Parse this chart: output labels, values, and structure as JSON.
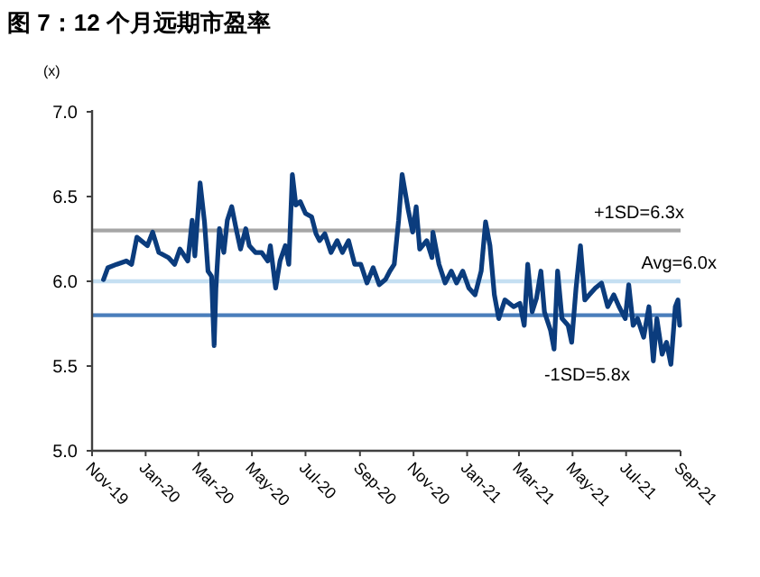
{
  "chart_data": {
    "type": "line",
    "title": "图 7：12 个月远期市盈率",
    "ylabel": "(x)",
    "xlim": [
      "2019-11-01",
      "2021-09-01"
    ],
    "xticks": [
      {
        "value": "2019-11-01",
        "label": "Nov-19"
      },
      {
        "value": "2020-01-01",
        "label": "Jan-20"
      },
      {
        "value": "2020-03-01",
        "label": "Mar-20"
      },
      {
        "value": "2020-05-01",
        "label": "May-20"
      },
      {
        "value": "2020-07-01",
        "label": "Jul-20"
      },
      {
        "value": "2020-09-01",
        "label": "Sep-20"
      },
      {
        "value": "2020-11-01",
        "label": "Nov-20"
      },
      {
        "value": "2021-01-01",
        "label": "Jan-21"
      },
      {
        "value": "2021-03-01",
        "label": "Mar-21"
      },
      {
        "value": "2021-05-01",
        "label": "May-21"
      },
      {
        "value": "2021-07-01",
        "label": "Jul-21"
      },
      {
        "value": "2021-09-01",
        "label": "Sep-21"
      }
    ],
    "ylim": [
      5,
      7
    ],
    "yticks": [
      {
        "value": 5,
        "label": "5.0"
      },
      {
        "value": 5.5,
        "label": "5.5"
      },
      {
        "value": 6,
        "label": "6.0"
      },
      {
        "value": 6.5,
        "label": "6.5"
      },
      {
        "value": 7,
        "label": "7.0"
      }
    ],
    "grid": false,
    "marker": "none",
    "line_style": "solid",
    "ref_lines": [
      {
        "axis": "y",
        "value": 6.3,
        "label": "+1SD=6.3x",
        "color": "#a6a6a6"
      },
      {
        "axis": "y",
        "value": 6.0,
        "label": "Avg=6.0x",
        "color": "#c5dff2"
      },
      {
        "axis": "y",
        "value": 5.8,
        "label": "-1SD=5.8x",
        "color": "#4a7ebb"
      }
    ],
    "series": [
      {
        "color": "#0b3c7d",
        "x": [
          "2019-11-14",
          "2019-11-19",
          "2019-11-29",
          "2019-12-10",
          "2019-12-16",
          "2019-12-22",
          "2020-01-03",
          "2020-01-09",
          "2020-01-16",
          "2020-01-27",
          "2020-02-03",
          "2020-02-09",
          "2020-02-18",
          "2020-02-23",
          "2020-02-26",
          "2020-03-03",
          "2020-03-08",
          "2020-03-12",
          "2020-03-16",
          "2020-03-19",
          "2020-03-21",
          "2020-03-25",
          "2020-03-30",
          "2020-04-03",
          "2020-04-08",
          "2020-04-13",
          "2020-04-18",
          "2020-04-24",
          "2020-04-28",
          "2020-05-05",
          "2020-05-12",
          "2020-05-19",
          "2020-05-22",
          "2020-05-28",
          "2020-06-02",
          "2020-06-08",
          "2020-06-12",
          "2020-06-16",
          "2020-06-20",
          "2020-06-25",
          "2020-07-01",
          "2020-07-08",
          "2020-07-13",
          "2020-07-17",
          "2020-07-23",
          "2020-07-30",
          "2020-08-06",
          "2020-08-12",
          "2020-08-19",
          "2020-08-26",
          "2020-09-02",
          "2020-09-09",
          "2020-09-16",
          "2020-09-23",
          "2020-09-30",
          "2020-10-05",
          "2020-10-10",
          "2020-10-15",
          "2020-10-19",
          "2020-10-26",
          "2020-10-31",
          "2020-11-04",
          "2020-11-08",
          "2020-11-16",
          "2020-11-22",
          "2020-11-23",
          "2020-11-30",
          "2020-12-07",
          "2020-12-14",
          "2020-12-20",
          "2020-12-27",
          "2021-01-03",
          "2021-01-10",
          "2021-01-17",
          "2021-01-22",
          "2021-01-27",
          "2021-02-01",
          "2021-02-06",
          "2021-02-13",
          "2021-02-23",
          "2021-03-02",
          "2021-03-07",
          "2021-03-11",
          "2021-03-16",
          "2021-03-21",
          "2021-03-26",
          "2021-03-30",
          "2021-04-06",
          "2021-04-10",
          "2021-04-14",
          "2021-04-19",
          "2021-04-26",
          "2021-04-30",
          "2021-05-05",
          "2021-05-10",
          "2021-05-15",
          "2021-05-20",
          "2021-05-27",
          "2021-06-03",
          "2021-06-10",
          "2021-06-17",
          "2021-06-23",
          "2021-06-30",
          "2021-07-04",
          "2021-07-09",
          "2021-07-14",
          "2021-07-21",
          "2021-07-27",
          "2021-08-01",
          "2021-08-05",
          "2021-08-11",
          "2021-08-16",
          "2021-08-21",
          "2021-08-26",
          "2021-08-29",
          "2021-08-31"
        ],
        "values": [
          6.01,
          6.08,
          6.1,
          6.12,
          6.1,
          6.26,
          6.21,
          6.29,
          6.17,
          6.14,
          6.1,
          6.19,
          6.12,
          6.36,
          6.15,
          6.58,
          6.35,
          6.06,
          6.03,
          5.62,
          5.96,
          6.31,
          6.17,
          6.36,
          6.44,
          6.31,
          6.19,
          6.31,
          6.21,
          6.17,
          6.17,
          6.12,
          6.21,
          5.96,
          6.12,
          6.21,
          6.1,
          6.63,
          6.45,
          6.47,
          6.4,
          6.38,
          6.28,
          6.24,
          6.28,
          6.17,
          6.24,
          6.17,
          6.24,
          6.1,
          6.1,
          5.99,
          6.08,
          5.98,
          6.01,
          6.06,
          6.1,
          6.36,
          6.63,
          6.42,
          6.29,
          6.44,
          6.19,
          6.24,
          6.14,
          6.29,
          6.1,
          5.99,
          6.06,
          5.99,
          6.06,
          5.96,
          5.92,
          6.06,
          6.35,
          6.21,
          5.92,
          5.78,
          5.89,
          5.85,
          5.87,
          5.74,
          6.1,
          5.82,
          5.9,
          6.06,
          5.82,
          5.71,
          5.6,
          6.06,
          5.78,
          5.74,
          5.64,
          5.96,
          6.21,
          5.89,
          5.92,
          5.96,
          5.99,
          5.85,
          5.92,
          5.85,
          5.78,
          5.98,
          5.74,
          5.78,
          5.67,
          5.85,
          5.53,
          5.78,
          5.57,
          5.64,
          5.51,
          5.85,
          5.89,
          5.74
        ]
      }
    ]
  }
}
